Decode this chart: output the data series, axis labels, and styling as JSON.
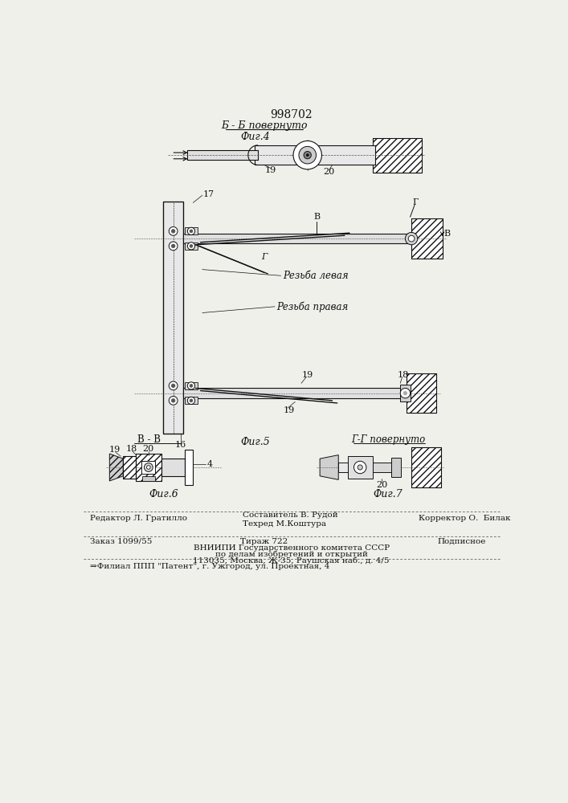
{
  "title": "998702",
  "bg_color": "#f0f0eb",
  "line_color": "#111111",
  "fig4_label": "Фиг.4",
  "fig5_label": "Фиг.5",
  "fig6_label": "Фиг.6",
  "fig7_label": "Фиг.7",
  "section_bb": "Б - Б повернуто",
  "section_gg": "Г-Г повернуто",
  "section_vv": "В - В",
  "label_rezba_lev": "Резьба левая",
  "label_rezba_prav": "Резьба правая",
  "footer_ed": "Редактор Л. Гратилло",
  "footer_comp": "Составитель В. Рудой",
  "footer_tech": "Техред М.Коштура",
  "footer_corr": "Корректор О.  Билак",
  "footer_order": "Заказ 1099/55",
  "footer_circ": "Тираж 722",
  "footer_sign": "Подписное",
  "footer_org1": "ВНИИПИ Государственного комитета СССР",
  "footer_org2": "по делам изобретений и открытий",
  "footer_addr": "113035, Москва, Ж-35, Раушская наб., д. 4/5",
  "footer_branch": "⇒Филиал ППП \"Патент\", г. Ужгород, ул. Проектная, 4"
}
